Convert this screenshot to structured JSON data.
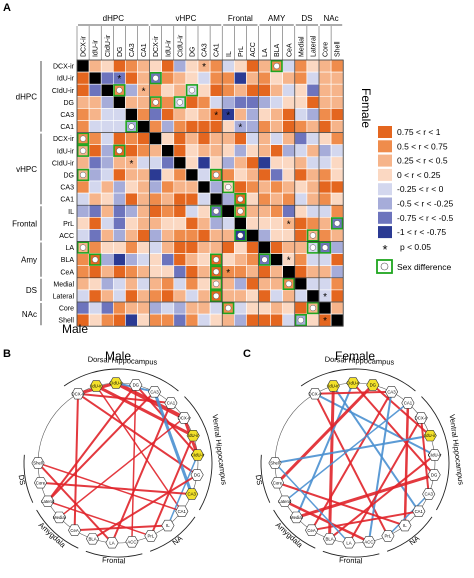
{
  "panels": {
    "a": "A",
    "b": "B",
    "c": "C"
  },
  "matrix": {
    "columns": [
      "DCX-ir",
      "IdU-ir",
      "CIdU-ir",
      "DG",
      "CA3",
      "CA1",
      "DCX-ir",
      "IdU-ir",
      "CIdU-ir",
      "DG",
      "CA3",
      "CA1",
      "IL",
      "PrL",
      "ACC",
      "LA",
      "BLA",
      "CeA",
      "Medial",
      "Lateral",
      "Core",
      "Shell"
    ],
    "rows": [
      "DCX-ir",
      "IdU-ir",
      "CIdU-ir",
      "DG",
      "CA3",
      "CA1",
      "DCX-ir",
      "IdU-ir",
      "CIdU-ir",
      "DG",
      "CA3",
      "CA1",
      "IL",
      "PrL",
      "ACC",
      "LA",
      "BLA",
      "CeA",
      "Medial",
      "Lateral",
      "Core",
      "Shell"
    ],
    "column_groups": [
      {
        "label": "dHPC",
        "start": 0,
        "end": 5
      },
      {
        "label": "vHPC",
        "start": 6,
        "end": 11
      },
      {
        "label": "Frontal",
        "start": 12,
        "end": 14
      },
      {
        "label": "AMY",
        "start": 15,
        "end": 17
      },
      {
        "label": "DS",
        "start": 18,
        "end": 19
      },
      {
        "label": "NAc",
        "start": 20,
        "end": 21
      }
    ],
    "row_groups": [
      {
        "label": "dHPC",
        "start": 0,
        "end": 5
      },
      {
        "label": "vHPC",
        "start": 6,
        "end": 11
      },
      {
        "label": "Frontal",
        "start": 12,
        "end": 14
      },
      {
        "label": "Amy",
        "start": 15,
        "end": 17
      },
      {
        "label": "DS",
        "start": 18,
        "end": 19
      },
      {
        "label": "NAc",
        "start": 20,
        "end": 21
      }
    ],
    "upper_label": "Female",
    "lower_label": "Male"
  },
  "legend": {
    "items": [
      {
        "label": "0.75 < r < 1",
        "color": "#e4661f"
      },
      {
        "label": "0.5 < r < 0.75",
        "color": "#ef8c4c"
      },
      {
        "label": "0.25 < r < 0.5",
        "color": "#f6b48a"
      },
      {
        "label": "0 < r < 0.25",
        "color": "#fbd8c2"
      },
      {
        "label": "-0.25 < r < 0",
        "color": "#d3d7ee"
      },
      {
        "label": "-0.5 < r < -0.25",
        "color": "#a6acd9"
      },
      {
        "label": "-0.75 < r < -0.5",
        "color": "#6d74bd"
      },
      {
        "label": "-1 < r < -0.75",
        "color": "#2b3a93"
      }
    ],
    "significance_symbol": "*",
    "significance_label": "p < 0.05",
    "sex_difference_label": "Sex difference"
  },
  "networks": {
    "male_title": "Male",
    "female_title": "Female",
    "node_labels": [
      "DCX-ir",
      "IdU-ir",
      "CIdU-ir",
      "DG",
      "CA3",
      "CA1",
      "DCX-ir",
      "IdU-ir",
      "CIdU-ir",
      "DG",
      "CA3",
      "CA1",
      "IL",
      "PrL",
      "ACC",
      "LA",
      "BLA",
      "CeA",
      "Medial",
      "Lateral",
      "Core",
      "Shell"
    ],
    "region_labels": [
      "Dorsal Hippocampus",
      "Ventral Hippocampus",
      "NA",
      "Frontal",
      "Amygdala",
      "DS"
    ],
    "positive_color": "#e0242a",
    "negative_color": "#4a90d0",
    "highlight_color": "#f3e12a"
  }
}
